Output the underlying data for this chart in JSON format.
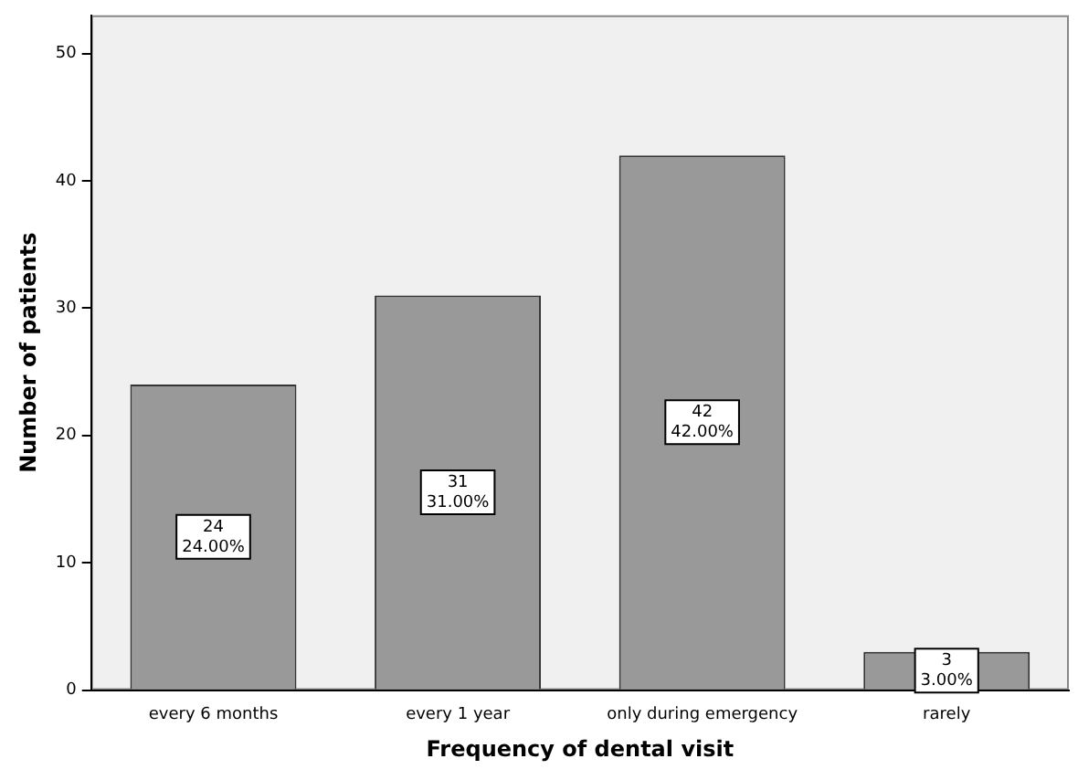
{
  "chart_data": {
    "type": "bar",
    "xlabel": "Frequency of dental visit",
    "ylabel": "Number of patients",
    "categories": [
      "every 6 months",
      "every 1 year",
      "only during emergency",
      "rarely"
    ],
    "values": [
      24,
      31,
      42,
      3
    ],
    "value_labels": [
      "24\n24.00%",
      "31\n31.00%",
      "42\n42.00%",
      "3\n3.00%"
    ],
    "color": "#999999",
    "ylim": [
      0,
      53
    ],
    "yticks": [
      0,
      10,
      20,
      30,
      40,
      50
    ],
    "grid": false,
    "legend": false
  }
}
